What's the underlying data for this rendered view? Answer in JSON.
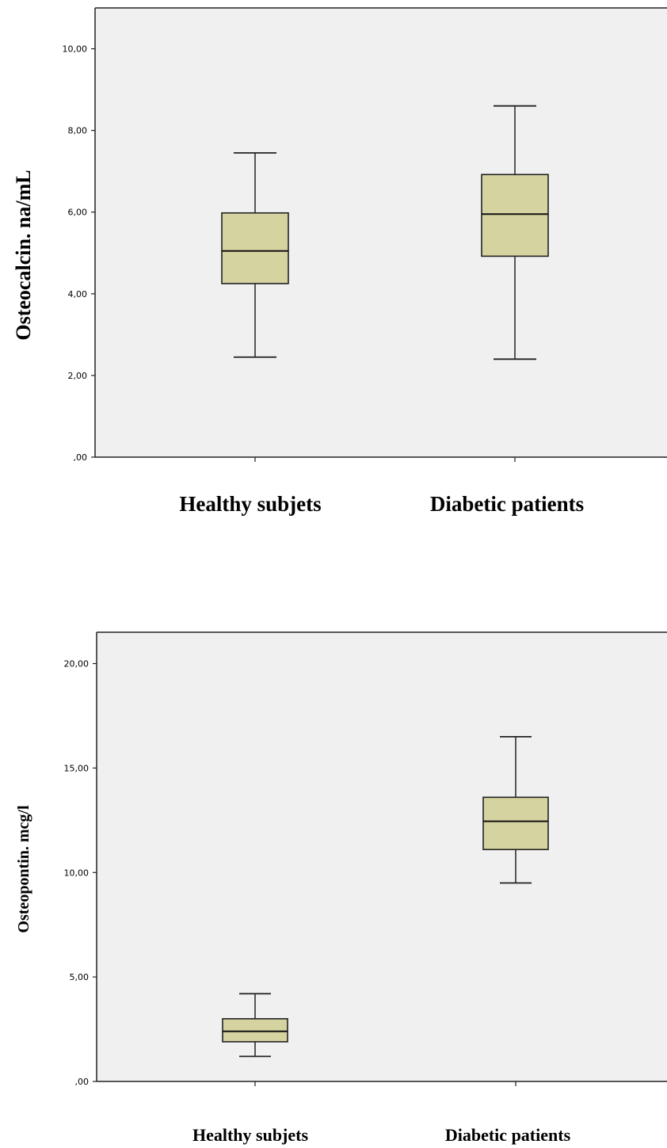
{
  "chart_data": [
    {
      "type": "boxplot",
      "ylabel": "Osteocalcin. na/mL",
      "ylim": [
        0,
        11
      ],
      "y_ticks": [
        0,
        2,
        4,
        6,
        8,
        10
      ],
      "y_tick_labels": [
        ",00",
        "2,00",
        "4,00",
        "6,00",
        "8,00",
        "10,00"
      ],
      "categories": [
        "Healthy subjets",
        "Diabetic patients"
      ],
      "boxes": [
        {
          "category": "Healthy subjets",
          "min": 2.45,
          "q1": 4.25,
          "median": 5.05,
          "q3": 5.98,
          "max": 7.45
        },
        {
          "category": "Diabetic patients",
          "min": 2.4,
          "q1": 4.92,
          "median": 5.95,
          "q3": 6.92,
          "max": 8.6
        }
      ],
      "grid": false,
      "box_color": "#d5d3a0",
      "plot_background": "#f0f0f0"
    },
    {
      "type": "boxplot",
      "ylabel": "Osteopontin. mcg/l",
      "ylim": [
        0,
        21.5
      ],
      "y_ticks": [
        0,
        5,
        10,
        15,
        20
      ],
      "y_tick_labels": [
        ",00",
        "5,00",
        "10,00",
        "15,00",
        "20,00"
      ],
      "categories": [
        "Healthy subjets",
        "Diabetic patients"
      ],
      "boxes": [
        {
          "category": "Healthy subjets",
          "min": 1.2,
          "q1": 1.9,
          "median": 2.4,
          "q3": 3.0,
          "max": 4.2
        },
        {
          "category": "Diabetic patients",
          "min": 9.5,
          "q1": 11.1,
          "median": 12.45,
          "q3": 13.6,
          "max": 16.5
        }
      ],
      "grid": false,
      "box_color": "#d5d3a0",
      "plot_background": "#f0f0f0"
    }
  ]
}
